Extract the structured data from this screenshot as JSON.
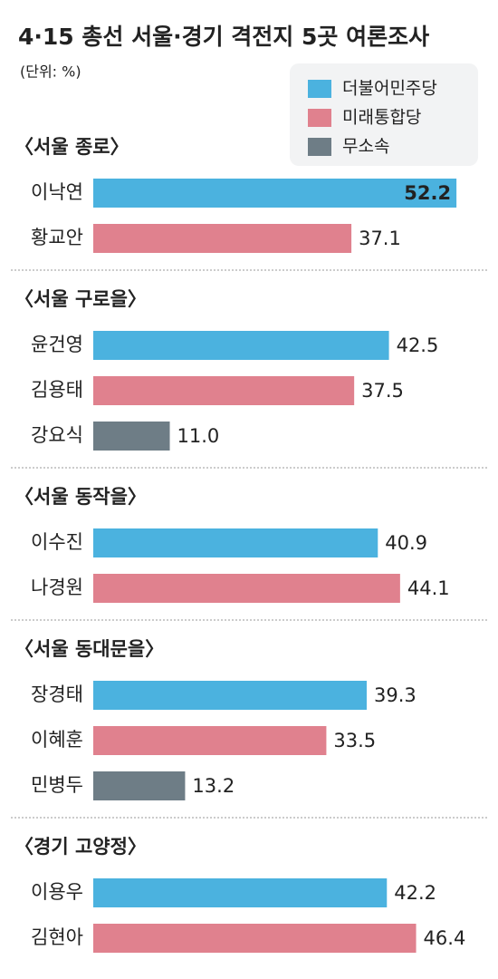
{
  "chart_data": {
    "type": "bar",
    "title": "4·15 총선 서울·경기 격전지 5곳 여론조사",
    "subtitle": "(단위: %)",
    "series": [
      {
        "name": "더불어민주당",
        "color": "#4bb2df"
      },
      {
        "name": "미래통합당",
        "color": "#e0818e"
      },
      {
        "name": "무소속",
        "color": "#6e7d86"
      }
    ],
    "xlim": [
      0,
      57
    ],
    "groups": [
      {
        "name": "〈서울 종로〉",
        "categories": [
          "이낙연",
          "황교안"
        ],
        "values": [
          52.2,
          37.1
        ],
        "colors": [
          "#4bb2df",
          "#e0818e"
        ]
      },
      {
        "name": "〈서울 구로을〉",
        "categories": [
          "윤건영",
          "김용태",
          "강요식"
        ],
        "values": [
          42.5,
          37.5,
          11
        ],
        "value_labels": [
          "42.5",
          "37.5",
          "11.0"
        ],
        "colors": [
          "#4bb2df",
          "#e0818e",
          "#6e7d86"
        ]
      },
      {
        "name": "〈서울 동작을〉",
        "categories": [
          "이수진",
          "나경원"
        ],
        "values": [
          40.9,
          44.1
        ],
        "colors": [
          "#4bb2df",
          "#e0818e"
        ]
      },
      {
        "name": "〈서울 동대문을〉",
        "categories": [
          "장경태",
          "이혜훈",
          "민병두"
        ],
        "values": [
          39.3,
          33.5,
          13.2
        ],
        "colors": [
          "#4bb2df",
          "#e0818e",
          "#6e7d86"
        ]
      },
      {
        "name": "〈경기 고양정〉",
        "categories": [
          "이용우",
          "김현아"
        ],
        "values": [
          42.2,
          46.4
        ],
        "colors": [
          "#4bb2df",
          "#e0818e"
        ]
      }
    ]
  }
}
